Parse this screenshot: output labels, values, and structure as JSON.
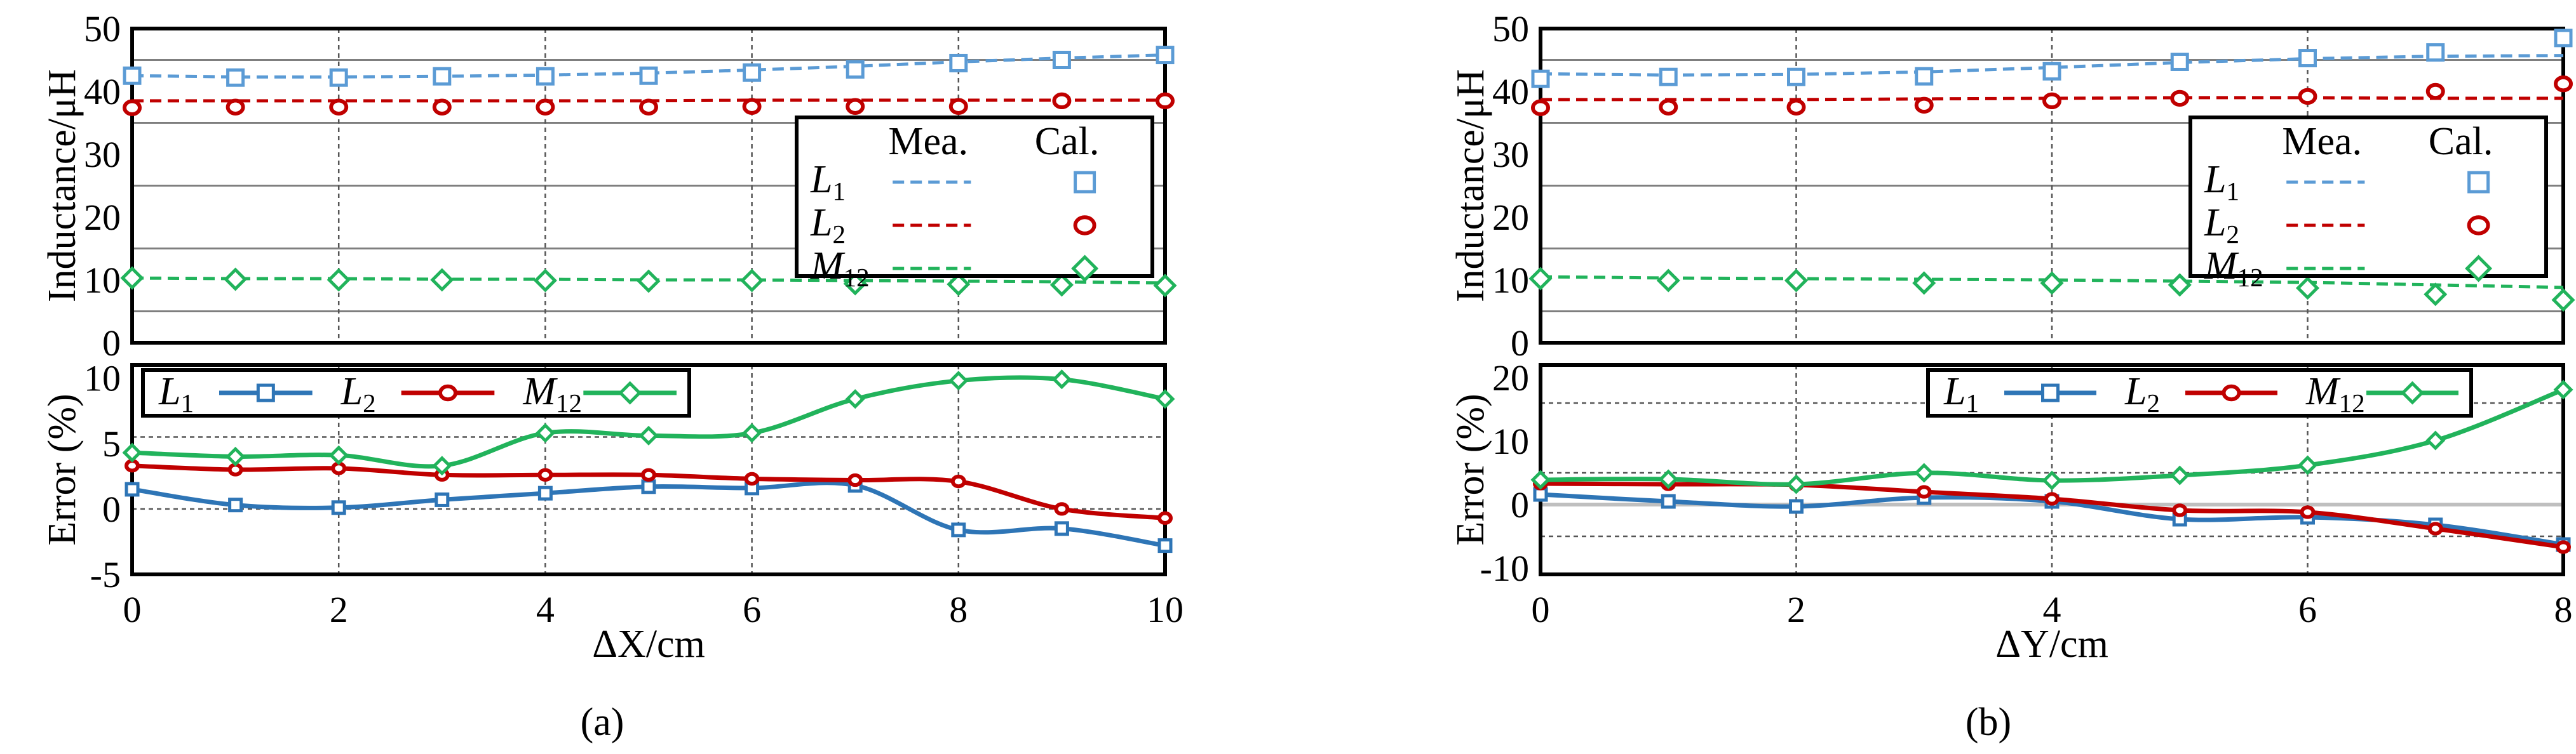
{
  "figure": {
    "caption_a": "(a)",
    "caption_b": "(b)"
  },
  "chart_data": [
    {
      "id": "a_top",
      "type": "line",
      "title": "",
      "xlabel": "ΔX/cm",
      "ylabel": "Inductance/μH",
      "xlim": [
        0,
        10
      ],
      "ylim": [
        0,
        50
      ],
      "x_ticks": [
        0,
        2,
        4,
        6,
        8,
        10
      ],
      "y_ticks": [
        0,
        10,
        20,
        30,
        40,
        50
      ],
      "x": [
        0,
        1,
        2,
        3,
        4,
        5,
        6,
        7,
        8,
        9,
        10
      ],
      "legend": {
        "header_measured": "Mea.",
        "header_calculated": "Cal.",
        "placement": "right"
      },
      "series": [
        {
          "name": "L1",
          "label_main": "L",
          "label_sub": "1",
          "color": "#5b9bd5",
          "marker": "square",
          "measured": [
            42.5,
            42.3,
            42.3,
            42.4,
            42.6,
            42.9,
            43.4,
            44.0,
            44.7,
            45.3,
            45.8
          ],
          "calculated": [
            42.5,
            42.2,
            42.2,
            42.4,
            42.4,
            42.5,
            43.0,
            43.5,
            44.5,
            45.0,
            45.8
          ]
        },
        {
          "name": "L2",
          "label_main": "L",
          "label_sub": "2",
          "color": "#c00000",
          "marker": "circle",
          "measured": [
            38.5,
            38.5,
            38.5,
            38.5,
            38.5,
            38.5,
            38.6,
            38.6,
            38.6,
            38.6,
            38.6
          ],
          "calculated": [
            37.4,
            37.5,
            37.5,
            37.5,
            37.5,
            37.5,
            37.6,
            37.6,
            37.6,
            38.5,
            38.5
          ]
        },
        {
          "name": "M12",
          "label_main": "M",
          "label_sub": "12",
          "color": "#21b35b",
          "marker": "diamond",
          "measured": [
            10.3,
            10.2,
            10.2,
            10.1,
            10.1,
            10.0,
            10.0,
            9.9,
            9.8,
            9.7,
            9.5
          ],
          "calculated": [
            10.3,
            10.1,
            10.0,
            10.0,
            9.9,
            9.8,
            9.9,
            9.4,
            9.3,
            9.2,
            9.1
          ]
        }
      ]
    },
    {
      "id": "a_bottom",
      "type": "line",
      "title": "",
      "xlabel": "ΔX/cm",
      "ylabel": "Error (%)",
      "xlim": [
        0,
        10
      ],
      "ylim": [
        -5,
        11
      ],
      "x_ticks": [
        0,
        2,
        4,
        6,
        8,
        10
      ],
      "y_ticks": [
        -5,
        0,
        5,
        10
      ],
      "y_dashed_gridlines": [
        0,
        5.5
      ],
      "x": [
        0,
        1,
        2,
        3,
        4,
        5,
        6,
        7,
        8,
        9,
        10
      ],
      "legend": {
        "placement": "top-left"
      },
      "series": [
        {
          "name": "L1",
          "label_main": "L",
          "label_sub": "1",
          "color": "#2e75b6",
          "marker": "square",
          "values": [
            1.5,
            0.3,
            0.1,
            0.7,
            1.2,
            1.7,
            1.6,
            1.8,
            -1.6,
            -1.5,
            -2.8
          ]
        },
        {
          "name": "L2",
          "label_main": "L",
          "label_sub": "2",
          "color": "#c00000",
          "marker": "circle",
          "values": [
            3.3,
            3.0,
            3.1,
            2.6,
            2.6,
            2.6,
            2.3,
            2.2,
            2.1,
            0.0,
            -0.7
          ]
        },
        {
          "name": "M12",
          "label_main": "M",
          "label_sub": "12",
          "color": "#21b35b",
          "marker": "diamond",
          "values": [
            4.3,
            4.0,
            4.1,
            3.3,
            5.8,
            5.6,
            5.8,
            8.4,
            9.8,
            9.9,
            8.4
          ]
        }
      ]
    },
    {
      "id": "b_top",
      "type": "line",
      "title": "",
      "xlabel": "ΔY/cm",
      "ylabel": "Inductance/μH",
      "xlim": [
        0,
        8
      ],
      "ylim": [
        0,
        50
      ],
      "x_ticks": [
        0,
        2,
        4,
        6,
        8
      ],
      "y_ticks": [
        0,
        10,
        20,
        30,
        40,
        50
      ],
      "x": [
        0,
        1,
        2,
        3,
        4,
        5,
        6,
        7,
        8
      ],
      "legend": {
        "header_measured": "Mea.",
        "header_calculated": "Cal.",
        "placement": "right"
      },
      "series": [
        {
          "name": "L1",
          "label_main": "L",
          "label_sub": "1",
          "color": "#5b9bd5",
          "marker": "square",
          "measured": [
            42.8,
            42.6,
            42.7,
            43.1,
            43.8,
            44.6,
            45.2,
            45.6,
            45.7
          ],
          "calculated": [
            42.0,
            42.3,
            42.3,
            42.4,
            43.2,
            44.7,
            45.3,
            46.2,
            48.5
          ]
        },
        {
          "name": "L2",
          "label_main": "L",
          "label_sub": "2",
          "color": "#c00000",
          "marker": "circle",
          "measured": [
            38.7,
            38.7,
            38.7,
            38.8,
            38.9,
            39.0,
            39.0,
            38.9,
            38.9
          ],
          "calculated": [
            37.4,
            37.5,
            37.5,
            37.8,
            38.5,
            38.9,
            39.2,
            40.0,
            41.2
          ]
        },
        {
          "name": "M12",
          "label_main": "M",
          "label_sub": "12",
          "color": "#21b35b",
          "marker": "diamond",
          "measured": [
            10.5,
            10.3,
            10.2,
            10.1,
            10.0,
            9.8,
            9.6,
            9.2,
            8.8
          ],
          "calculated": [
            10.2,
            9.9,
            9.9,
            9.5,
            9.5,
            9.2,
            8.7,
            7.7,
            6.8
          ]
        }
      ]
    },
    {
      "id": "b_bottom",
      "type": "line",
      "title": "",
      "xlabel": "ΔY/cm",
      "ylabel": "Error (%)",
      "xlim": [
        0,
        8
      ],
      "ylim": [
        -11,
        22
      ],
      "x_ticks": [
        0,
        2,
        4,
        6,
        8
      ],
      "y_ticks": [
        -10,
        0,
        10,
        20
      ],
      "y_dashed_gridlines": [
        -5,
        5,
        16
      ],
      "y_solid_gridlines": [
        0
      ],
      "x": [
        0,
        1,
        2,
        3,
        4,
        5,
        6,
        7,
        8
      ],
      "legend": {
        "placement": "top-right"
      },
      "series": [
        {
          "name": "L1",
          "label_main": "L",
          "label_sub": "1",
          "color": "#2e75b6",
          "marker": "square",
          "values": [
            1.6,
            0.5,
            -0.3,
            1.1,
            0.5,
            -2.3,
            -2.0,
            -3.2,
            -6.3
          ]
        },
        {
          "name": "L2",
          "label_main": "L",
          "label_sub": "2",
          "color": "#c00000",
          "marker": "circle",
          "values": [
            3.3,
            3.2,
            3.1,
            2.0,
            0.9,
            -0.9,
            -1.2,
            -3.8,
            -6.7
          ]
        },
        {
          "name": "M12",
          "label_main": "M",
          "label_sub": "12",
          "color": "#21b35b",
          "marker": "diamond",
          "values": [
            3.9,
            4.0,
            3.2,
            5.0,
            3.8,
            4.6,
            6.2,
            10.1,
            18.1
          ]
        }
      ]
    }
  ]
}
